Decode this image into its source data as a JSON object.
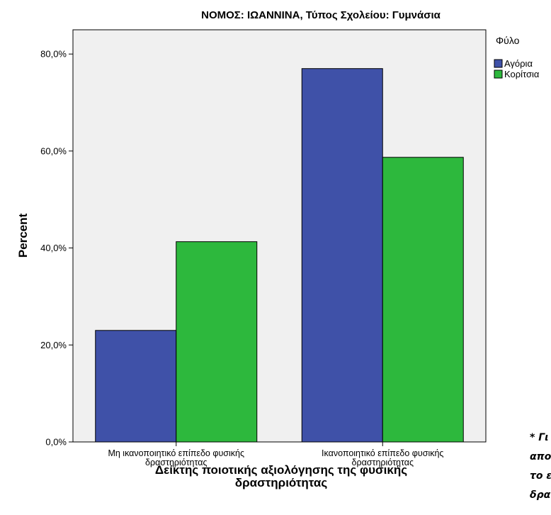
{
  "chart_data": {
    "type": "bar",
    "title": "ΝΟΜΟΣ: ΙΩΑΝΝΙΝΑ, Τύπος Σχολείου: Γυμνάσια",
    "xlabel_lines": [
      "Δείκτης ποιοτικής αξιολόγησης της φυσικής",
      "δραστηριότητας"
    ],
    "ylabel": "Percent",
    "ylim": [
      0,
      85
    ],
    "yticks": [
      0,
      20,
      40,
      60,
      80
    ],
    "ytick_labels": [
      "0,0%",
      "20,0%",
      "40,0%",
      "60,0%",
      "80,0%"
    ],
    "categories": [
      {
        "lines": [
          "Μη ικανοποιητικό επίπεδο φυσικής",
          "δραστηριότητας"
        ]
      },
      {
        "lines": [
          "Ικανοποιητικό επίπεδο φυσικής",
          "δραστηριότητας"
        ]
      }
    ],
    "legend_title": "Φύλο",
    "legend_position": "top-right",
    "grid": false,
    "series": [
      {
        "name": "Αγόρια",
        "color": "#3f51a8",
        "values": [
          23.0,
          77.0
        ]
      },
      {
        "name": "Κορίτσια",
        "color": "#2db83d",
        "values": [
          41.3,
          58.7
        ]
      }
    ],
    "plot_background": "#f0f0f0"
  },
  "side_note": {
    "lines": [
      "* Γι",
      "απο",
      "το ε",
      "δρα"
    ]
  }
}
